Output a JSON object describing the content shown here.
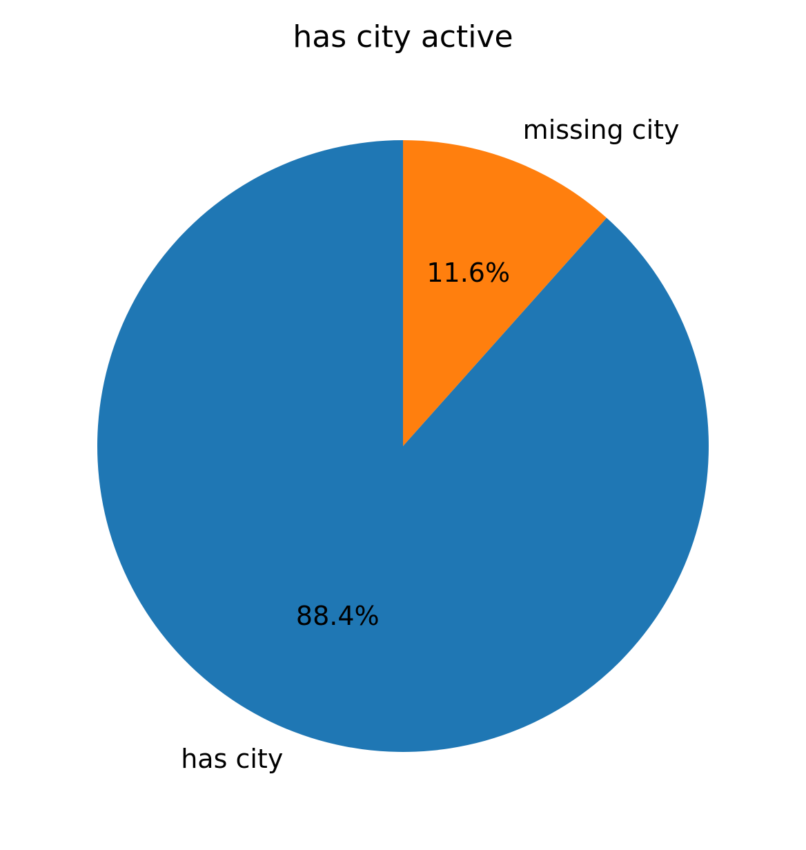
{
  "chart_data": {
    "type": "pie",
    "title": "has city active",
    "labels": [
      "has city",
      "missing city"
    ],
    "values": [
      88.4,
      11.6
    ],
    "value_labels": [
      "88.4%",
      "11.6%"
    ],
    "colors": [
      "#1f77b4",
      "#ff7f0e"
    ],
    "start_angle_deg": 90,
    "direction": "counterclockwise"
  }
}
